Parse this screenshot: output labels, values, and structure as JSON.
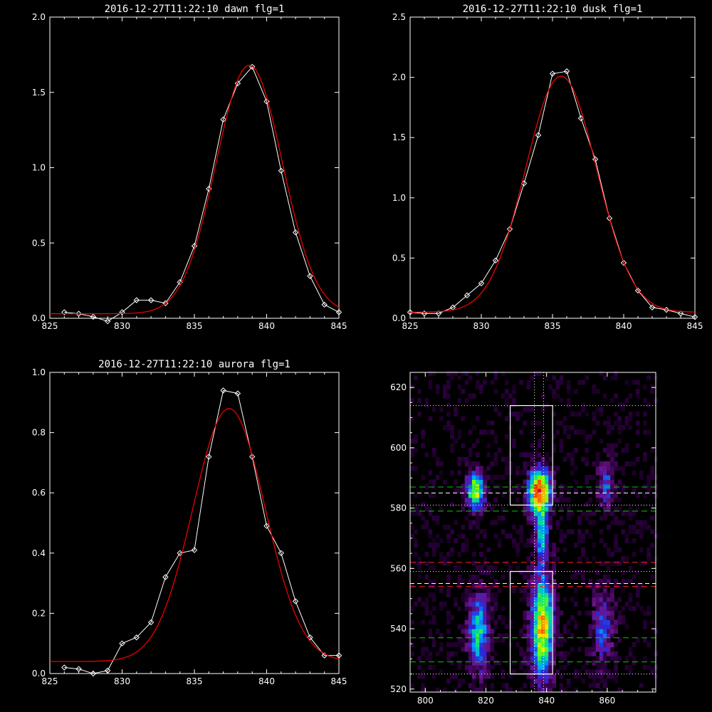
{
  "colors": {
    "background": "#000000",
    "axes": "#ffffff",
    "data_line": "#ffffff",
    "fit_line": "#ff0000",
    "green_guides": "#00cc00",
    "red_guides": "#ff2020"
  },
  "chart_data": [
    {
      "id": "dawn",
      "type": "line",
      "title": "2016-12-27T11:22:10 dawn flg=1",
      "xlim": [
        825,
        845
      ],
      "ylim": [
        0,
        2.0
      ],
      "xticks": [
        "825",
        "830",
        "835",
        "840",
        "845"
      ],
      "yticks": [
        "0.0",
        "0.5",
        "1.0",
        "1.5",
        "2.0"
      ],
      "series": [
        {
          "role": "data",
          "marker": "diamond",
          "color": "#ffffff",
          "x": [
            826,
            827,
            828,
            829,
            830,
            831,
            832,
            833,
            834,
            835,
            836,
            837,
            838,
            839,
            840,
            841,
            842,
            843,
            844,
            845
          ],
          "y": [
            0.04,
            0.03,
            0.01,
            -0.02,
            0.04,
            0.12,
            0.12,
            0.1,
            0.24,
            0.48,
            0.86,
            1.32,
            1.56,
            1.67,
            1.44,
            0.98,
            0.57,
            0.28,
            0.09,
            0.04
          ]
        },
        {
          "role": "fit",
          "color": "#ff0000",
          "model": "gauss",
          "amp": 1.65,
          "center": 838.8,
          "sigma": 2.3,
          "offset": 0.03
        }
      ]
    },
    {
      "id": "dusk",
      "type": "line",
      "title": "2016-12-27T11:22:10 dusk flg=1",
      "xlim": [
        825,
        845
      ],
      "ylim": [
        0,
        2.5
      ],
      "xticks": [
        "825",
        "830",
        "835",
        "840",
        "845"
      ],
      "yticks": [
        "0.0",
        "0.5",
        "1.0",
        "1.5",
        "2.0",
        "2.5"
      ],
      "series": [
        {
          "role": "data",
          "marker": "diamond",
          "color": "#ffffff",
          "x": [
            825,
            826,
            827,
            828,
            829,
            830,
            831,
            832,
            833,
            834,
            835,
            836,
            837,
            838,
            839,
            840,
            841,
            842,
            843,
            844,
            845
          ],
          "y": [
            0.05,
            0.04,
            0.04,
            0.09,
            0.19,
            0.29,
            0.48,
            0.74,
            1.12,
            1.52,
            2.03,
            2.05,
            1.66,
            1.32,
            0.83,
            0.46,
            0.23,
            0.09,
            0.07,
            0.04,
            0.01
          ]
        },
        {
          "role": "fit",
          "color": "#ff0000",
          "model": "gauss",
          "amp": 1.96,
          "center": 835.6,
          "sigma": 2.5,
          "offset": 0.05
        }
      ]
    },
    {
      "id": "aurora",
      "type": "line",
      "title": "2016-12-27T11:22:10 aurora flg=1",
      "xlim": [
        825,
        845
      ],
      "ylim": [
        0,
        1.0
      ],
      "xticks": [
        "825",
        "830",
        "835",
        "840",
        "845"
      ],
      "yticks": [
        "0.0",
        "0.2",
        "0.4",
        "0.6",
        "0.8",
        "1.0"
      ],
      "series": [
        {
          "role": "data",
          "marker": "diamond",
          "color": "#ffffff",
          "x": [
            826,
            827,
            828,
            829,
            830,
            831,
            832,
            833,
            834,
            835,
            836,
            837,
            838,
            839,
            840,
            841,
            842,
            843,
            844,
            845
          ],
          "y": [
            0.02,
            0.015,
            0.0,
            0.01,
            0.1,
            0.12,
            0.17,
            0.32,
            0.4,
            0.41,
            0.72,
            0.94,
            0.93,
            0.72,
            0.49,
            0.4,
            0.24,
            0.12,
            0.06,
            0.06
          ]
        },
        {
          "role": "fit",
          "color": "#ff0000",
          "model": "gauss",
          "amp": 0.84,
          "center": 837.4,
          "sigma": 2.5,
          "offset": 0.04
        }
      ]
    },
    {
      "id": "spectrogram",
      "type": "heatmap",
      "title": "",
      "xlim": [
        795,
        876
      ],
      "ylim": [
        519,
        625
      ],
      "xticks": [
        "800",
        "820",
        "840",
        "860"
      ],
      "yticks": [
        "520",
        "540",
        "560",
        "580",
        "600",
        "620"
      ],
      "colormap": "rainbow",
      "emission_blobs": [
        {
          "x": 816,
          "y": 585,
          "sx": 2.0,
          "sy": 4.5,
          "amp": 0.75
        },
        {
          "x": 837,
          "y": 585,
          "sx": 2.5,
          "sy": 5.5,
          "amp": 1.0
        },
        {
          "x": 859,
          "y": 587,
          "sx": 2.0,
          "sy": 5.0,
          "amp": 0.35
        },
        {
          "x": 817,
          "y": 538,
          "sx": 2.5,
          "sy": 9.0,
          "amp": 0.55
        },
        {
          "x": 838,
          "y": 540,
          "sx": 2.5,
          "sy": 12.0,
          "amp": 0.85
        },
        {
          "x": 858,
          "y": 540,
          "sx": 2.5,
          "sy": 9.0,
          "amp": 0.35
        },
        {
          "x": 838,
          "y": 570,
          "sx": 1.5,
          "sy": 6.0,
          "amp": 0.45
        }
      ],
      "boxes": [
        {
          "x0": 828,
          "x1": 842,
          "y0": 581,
          "y1": 614
        },
        {
          "x0": 828,
          "x1": 842,
          "y0": 525,
          "y1": 559
        }
      ],
      "white_dotted_h": [
        525,
        581,
        614,
        559
      ],
      "white_dashed_h": [
        585,
        555
      ],
      "green_dashed_h": [
        587,
        579,
        537,
        529
      ],
      "red_dashed_h": [
        562,
        554
      ],
      "white_dotted_v": [
        836,
        839
      ]
    }
  ]
}
